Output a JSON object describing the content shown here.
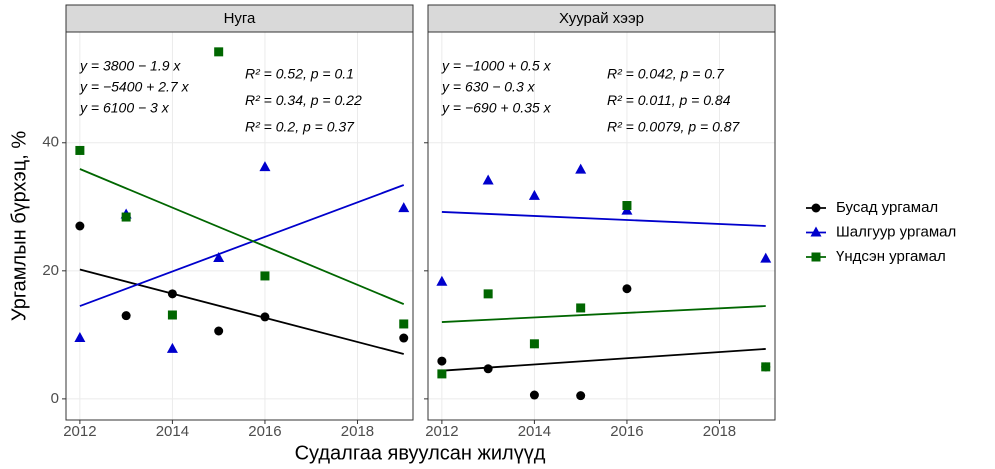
{
  "axis_labels": {
    "x": "Судалгаа явуулсан жилүүд",
    "y": "Ургамлын бүрхэц, %"
  },
  "chart_data": [
    {
      "type": "scatter",
      "title": "Нуга",
      "x": [
        2012,
        2013,
        2014,
        2015,
        2016,
        2019
      ],
      "fit_x": [
        2012,
        2019
      ],
      "xlim": [
        2011.7,
        2019.2
      ],
      "ylim": [
        -3.3,
        57.3
      ],
      "xticks": [
        2012,
        2014,
        2016,
        2018
      ],
      "yticks": [
        0,
        20,
        40
      ],
      "grid": true,
      "series": [
        {
          "name": "Бусад ургамал",
          "color": "#000000",
          "marker": "circle",
          "values": [
            27.0,
            13.0,
            16.4,
            10.6,
            12.8,
            9.5
          ],
          "fit": [
            20.2,
            7.0
          ],
          "equation": "y = 3800 − 1.9 x",
          "stats": "R² = 0.52, p = 0.1"
        },
        {
          "name": "Шалгуур ургамал",
          "color": "#0000cc",
          "marker": "triangle",
          "values": [
            9.5,
            28.8,
            7.8,
            22.0,
            36.2,
            29.8
          ],
          "fit": [
            14.5,
            33.4
          ],
          "equation": "y = −5400 + 2.7 x",
          "stats": "R² = 0.34, p = 0.22"
        },
        {
          "name": "Үндсэн ургамал",
          "color": "#006600",
          "marker": "square",
          "values": [
            38.8,
            28.4,
            13.1,
            54.2,
            19.2,
            11.7
          ],
          "fit": [
            35.9,
            14.8
          ],
          "equation": "y = 6100 − 3 x",
          "stats": "R² = 0.2, p = 0.37"
        }
      ]
    },
    {
      "type": "scatter",
      "title": "Хуурай хээр",
      "x": [
        2012,
        2013,
        2014,
        2015,
        2016,
        2019
      ],
      "fit_x": [
        2012,
        2019
      ],
      "xlim": [
        2011.7,
        2019.2
      ],
      "ylim": [
        -3.3,
        57.3
      ],
      "xticks": [
        2012,
        2014,
        2016,
        2018
      ],
      "yticks": [
        0,
        20,
        40
      ],
      "grid": true,
      "series": [
        {
          "name": "Бусад ургамал",
          "color": "#000000",
          "marker": "circle",
          "values": [
            5.9,
            4.7,
            0.6,
            0.5,
            17.2,
            5.0
          ],
          "fit": [
            4.4,
            7.8
          ],
          "equation": "y = −1000 + 0.5 x",
          "stats": "R² = 0.042, p = 0.7"
        },
        {
          "name": "Шалгуур ургамал",
          "color": "#0000cc",
          "marker": "triangle",
          "values": [
            18.3,
            34.1,
            31.7,
            35.8,
            29.4,
            21.9
          ],
          "fit": [
            29.2,
            27.0
          ],
          "equation": "y = 630 − 0.3 x",
          "stats": "R² = 0.011, p = 0.84"
        },
        {
          "name": "Үндсэн ургамал",
          "color": "#006600",
          "marker": "square",
          "values": [
            3.9,
            16.4,
            8.6,
            14.2,
            30.2,
            5.0
          ],
          "fit": [
            12.0,
            14.5
          ],
          "equation": "y = −690 + 0.35 x",
          "stats": "R² = 0.0079, p = 0.87"
        }
      ]
    }
  ]
}
